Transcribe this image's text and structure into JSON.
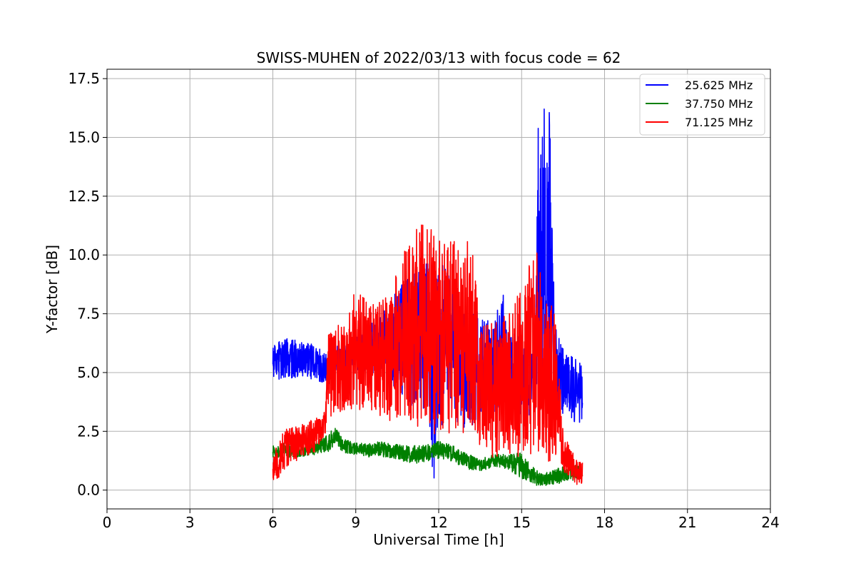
{
  "chart_data": {
    "type": "line",
    "title": "SWISS-MUHEN of 2022/03/13 with focus code = 62",
    "xlabel": "Universal Time [h]",
    "ylabel": "Y-factor [dB]",
    "xlim": [
      0,
      24
    ],
    "ylim": [
      -0.8,
      17.9
    ],
    "x_ticks": [
      0,
      3,
      6,
      9,
      12,
      15,
      18,
      21,
      24
    ],
    "x_tick_labels": [
      "0",
      "3",
      "6",
      "9",
      "12",
      "15",
      "18",
      "21",
      "24"
    ],
    "y_ticks": [
      0,
      2.5,
      5,
      7.5,
      10,
      12.5,
      15,
      17.5
    ],
    "y_tick_labels": [
      "0.0",
      "2.5",
      "5.0",
      "7.5",
      "10.0",
      "12.5",
      "15.0",
      "17.5"
    ],
    "grid": true,
    "legend_position": "top-right",
    "series": [
      {
        "name": "25.625 MHz",
        "color": "#0000ff",
        "x": [
          6.0,
          6.5,
          7.0,
          7.5,
          8.0,
          8.5,
          9.0,
          9.5,
          10.0,
          10.5,
          11.0,
          11.5,
          11.9,
          12.0,
          12.5,
          13.0,
          13.5,
          14.0,
          14.3,
          14.5,
          15.0,
          15.5,
          15.6,
          15.7,
          15.8,
          15.9,
          16.0,
          16.2,
          16.5,
          17.0,
          17.2
        ],
        "low": [
          4.7,
          4.6,
          4.8,
          4.7,
          4.5,
          4.6,
          4.9,
          5.0,
          4.8,
          4.2,
          3.5,
          3.0,
          0.0,
          2.5,
          2.8,
          2.6,
          2.9,
          3.2,
          3.8,
          3.5,
          3.2,
          3.0,
          3.2,
          3.0,
          3.5,
          3.3,
          3.0,
          3.5,
          3.2,
          2.8,
          2.4
        ],
        "high": [
          6.3,
          6.5,
          6.3,
          6.2,
          5.8,
          6.3,
          6.5,
          7.0,
          7.6,
          8.5,
          9.5,
          10.0,
          10.0,
          9.8,
          9.0,
          8.0,
          7.5,
          7.0,
          8.6,
          7.0,
          6.5,
          7.0,
          15.4,
          16.0,
          17.1,
          14.0,
          16.7,
          7.0,
          6.3,
          5.7,
          5.8
        ]
      },
      {
        "name": "37.750 MHz",
        "color": "#008000",
        "x": [
          6.0,
          6.5,
          7.0,
          7.5,
          8.0,
          8.3,
          8.5,
          9.0,
          9.5,
          10.0,
          10.5,
          11.0,
          11.5,
          12.0,
          12.5,
          13.0,
          13.5,
          14.0,
          14.5,
          15.0,
          15.5,
          16.0,
          16.5,
          17.0,
          17.2
        ],
        "low": [
          1.4,
          1.4,
          1.4,
          1.5,
          1.6,
          1.9,
          1.6,
          1.5,
          1.4,
          1.4,
          1.3,
          1.1,
          1.2,
          1.3,
          1.2,
          0.9,
          0.8,
          1.0,
          0.9,
          0.5,
          0.2,
          0.2,
          0.3,
          0.4,
          0.5
        ],
        "high": [
          1.9,
          2.0,
          1.9,
          2.0,
          2.4,
          2.8,
          2.2,
          2.0,
          2.0,
          2.1,
          2.0,
          1.9,
          1.9,
          2.1,
          1.9,
          1.6,
          1.3,
          1.6,
          1.5,
          1.6,
          0.9,
          0.8,
          1.0,
          1.1,
          1.0
        ]
      },
      {
        "name": "71.125 MHz",
        "color": "#ff0000",
        "x": [
          6.0,
          6.3,
          6.5,
          7.0,
          7.5,
          7.9,
          8.0,
          8.5,
          9.0,
          9.5,
          10.0,
          10.5,
          11.0,
          11.5,
          12.0,
          12.5,
          13.0,
          13.3,
          13.5,
          14.0,
          14.5,
          15.0,
          15.5,
          16.0,
          16.2,
          16.5,
          17.0,
          17.2
        ],
        "low": [
          0.4,
          0.6,
          1.0,
          1.3,
          1.6,
          2.3,
          3.0,
          3.3,
          3.4,
          3.3,
          3.0,
          2.9,
          2.6,
          2.3,
          2.2,
          2.4,
          2.4,
          2.5,
          1.8,
          1.3,
          1.4,
          1.4,
          1.3,
          1.0,
          1.6,
          0.8,
          0.2,
          0.3
        ],
        "high": [
          1.4,
          2.5,
          2.6,
          2.8,
          3.1,
          3.5,
          6.6,
          7.3,
          8.5,
          8.0,
          8.3,
          9.3,
          11.1,
          11.4,
          11.0,
          10.6,
          10.9,
          10.0,
          7.1,
          7.2,
          7.5,
          8.6,
          10.5,
          7.7,
          8.4,
          2.5,
          1.3,
          1.2
        ]
      }
    ]
  }
}
